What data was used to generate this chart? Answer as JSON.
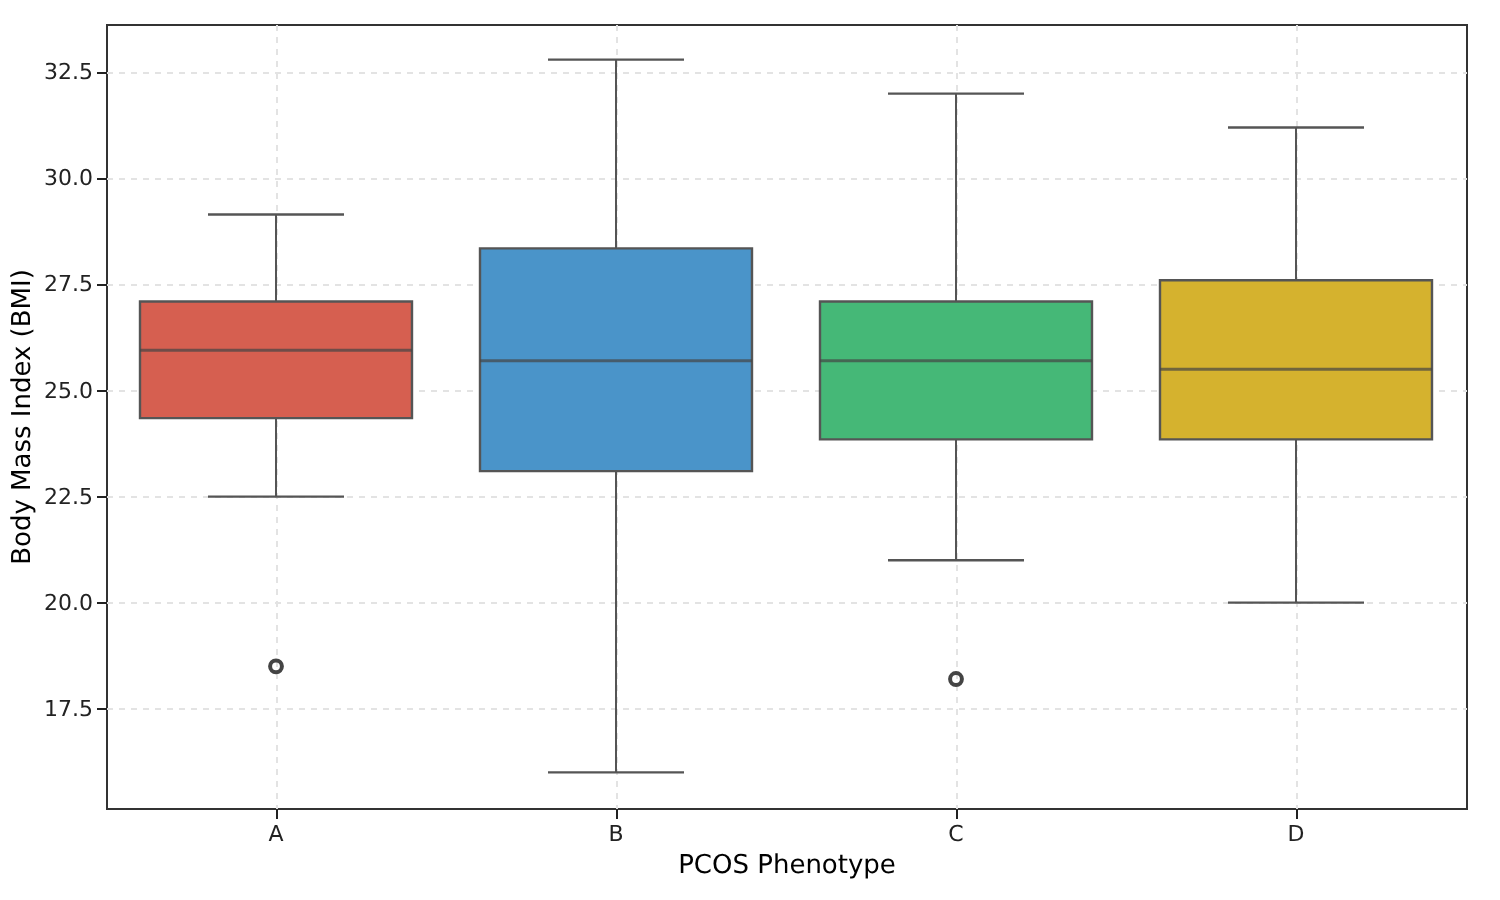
{
  "chart_data": {
    "type": "box",
    "xlabel": "PCOS Phenotype",
    "ylabel": "Body Mass Index (BMI)",
    "categories": [
      "A",
      "B",
      "C",
      "D"
    ],
    "boxes": [
      {
        "low": 22.5,
        "q1": 24.35,
        "median": 25.95,
        "q3": 27.1,
        "high": 29.15,
        "outliers": [
          18.5
        ]
      },
      {
        "low": 16.0,
        "q1": 23.1,
        "median": 25.7,
        "q3": 28.35,
        "high": 32.8
      },
      {
        "low": 21.0,
        "q1": 23.85,
        "median": 25.7,
        "q3": 27.1,
        "high": 32.0,
        "outliers": [
          18.2
        ]
      },
      {
        "low": 20.0,
        "q1": 23.85,
        "median": 25.5,
        "q3": 27.6,
        "high": 31.2
      }
    ],
    "colors": [
      "#d65f50",
      "#4a94c9",
      "#45b877",
      "#d5b22e"
    ],
    "ylim": [
      15.16,
      33.64
    ],
    "yticks": [
      17.5,
      {
        "value": 20,
        "label": "20.0"
      },
      22.5,
      {
        "value": 25,
        "label": "25.0"
      },
      27.5,
      {
        "value": 30,
        "label": "30.0"
      },
      32.5
    ],
    "grid": true
  }
}
